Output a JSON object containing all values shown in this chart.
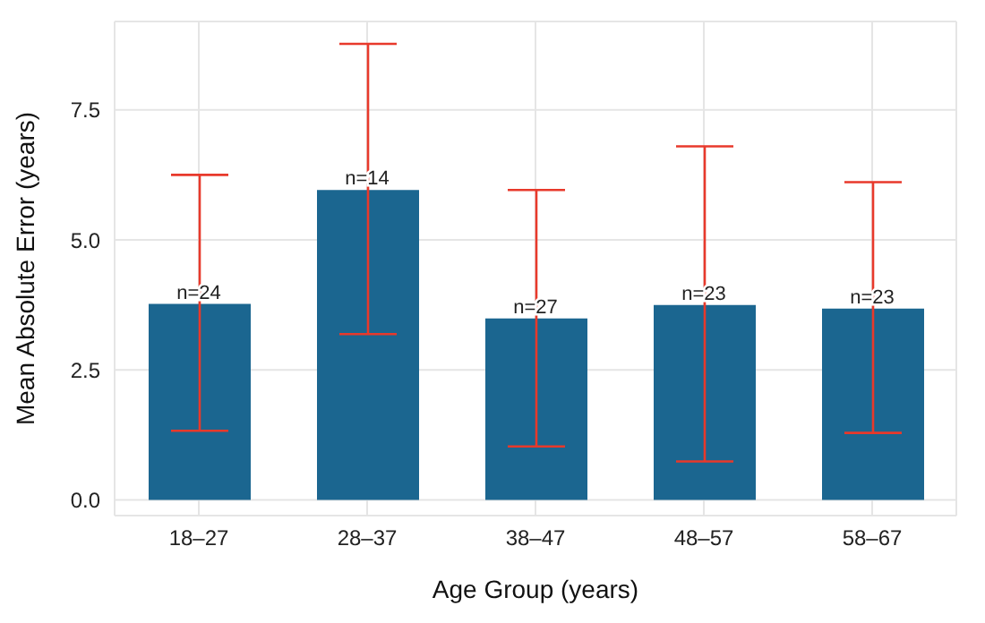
{
  "chart_data": {
    "type": "bar",
    "xlabel": "Age Group (years)",
    "ylabel": "Mean Absolute Error (years)",
    "categories": [
      "18–27",
      "28–37",
      "38–47",
      "48–57",
      "58–67"
    ],
    "values": [
      3.77,
      5.96,
      3.49,
      3.75,
      3.68
    ],
    "errors": [
      [
        1.33,
        6.25
      ],
      [
        3.19,
        8.77
      ],
      [
        1.03,
        5.96
      ],
      [
        0.74,
        6.8
      ],
      [
        1.29,
        6.11
      ]
    ],
    "annotations": [
      {
        "text": "n=24",
        "x": "18–27",
        "y": 3.77
      },
      {
        "text": "n=14",
        "x": "28–37",
        "y": 5.96
      },
      {
        "text": "n=27",
        "x": "38–47",
        "y": 3.49
      },
      {
        "text": "n=23",
        "x": "48–57",
        "y": 3.75
      },
      {
        "text": "n=23",
        "x": "58–67",
        "y": 3.68
      }
    ],
    "color": "#1b6690",
    "ylim": [
      -0.3,
      9.2
    ],
    "yticks": [
      {
        "value": 0,
        "label": "0.0"
      },
      {
        "value": 2.5,
        "label": "2.5"
      },
      {
        "value": 5,
        "label": "5.0"
      },
      {
        "value": 7.5,
        "label": "7.5"
      }
    ],
    "grid": true
  }
}
